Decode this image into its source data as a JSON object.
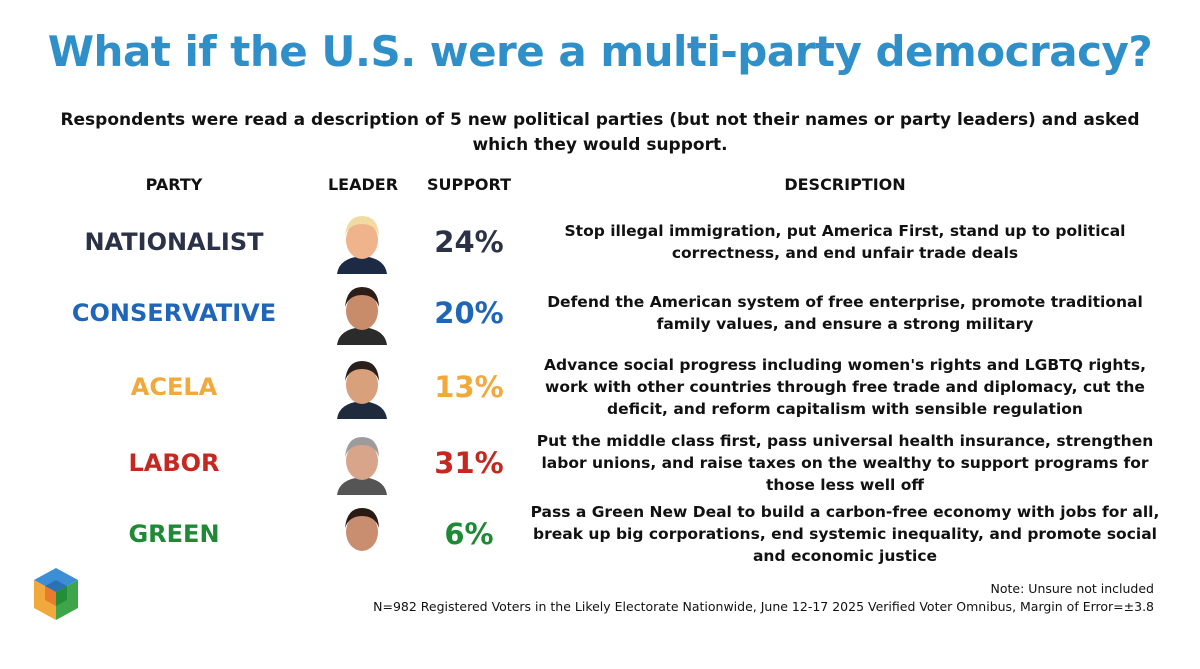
{
  "title": "What if the U.S. were a multi-party democracy?",
  "subtitle": "Respondents were read a description of 5 new political parties (but not their names or party leaders) and asked which they would support.",
  "headers": {
    "party": "PARTY",
    "leader": "LEADER",
    "support": "SUPPORT",
    "description": "DESCRIPTION"
  },
  "parties": [
    {
      "name": "NATIONALIST",
      "support_label": "24%",
      "color": "#2b3146",
      "leader_portrait": "portrait-icon",
      "description": "Stop illegal immigration, put America First, stand up to political correctness, and end unfair trade deals"
    },
    {
      "name": "CONSERVATIVE",
      "support_label": "20%",
      "color": "#1f66b8",
      "leader_portrait": "portrait-icon",
      "description": "Defend the American system of free enterprise, promote traditional family values, and ensure a strong military"
    },
    {
      "name": "ACELA",
      "support_label": "13%",
      "color": "#f2a93b",
      "leader_portrait": "portrait-icon",
      "description": "Advance social progress including women's rights and LGBTQ rights, work with other countries through free trade and diplomacy, cut the deficit, and reform capitalism with sensible regulation"
    },
    {
      "name": "LABOR",
      "support_label": "31%",
      "color": "#c4281f",
      "leader_portrait": "portrait-icon",
      "description": "Put the middle class first, pass universal health insurance, strengthen labor unions, and raise taxes on the wealthy to support programs for those less well off"
    },
    {
      "name": "GREEN",
      "support_label": "6%",
      "color": "#1e8a35",
      "leader_portrait": "portrait-icon",
      "description": "Pass a Green New Deal to build a carbon-free economy with jobs for all, break up big corporations, end systemic inequality, and promote social and economic justice"
    }
  ],
  "notes": {
    "unsure": "Note: Unsure not included",
    "methodology": "N=982 Registered Voters in the Likely Electorate Nationwide, June 12-17 2025 Verified Voter Omnibus, Margin of Error=±3.8"
  },
  "chart_data": {
    "type": "table",
    "title": "What if the U.S. were a multi-party democracy?",
    "subtitle": "Respondents were read a description of 5 new political parties (but not their names or party leaders) and asked which they would support.",
    "columns": [
      "PARTY",
      "LEADER",
      "SUPPORT",
      "DESCRIPTION"
    ],
    "categories": [
      "NATIONALIST",
      "CONSERVATIVE",
      "ACELA",
      "LABOR",
      "GREEN"
    ],
    "values": [
      24,
      20,
      13,
      31,
      6
    ],
    "unit": "%"
  }
}
